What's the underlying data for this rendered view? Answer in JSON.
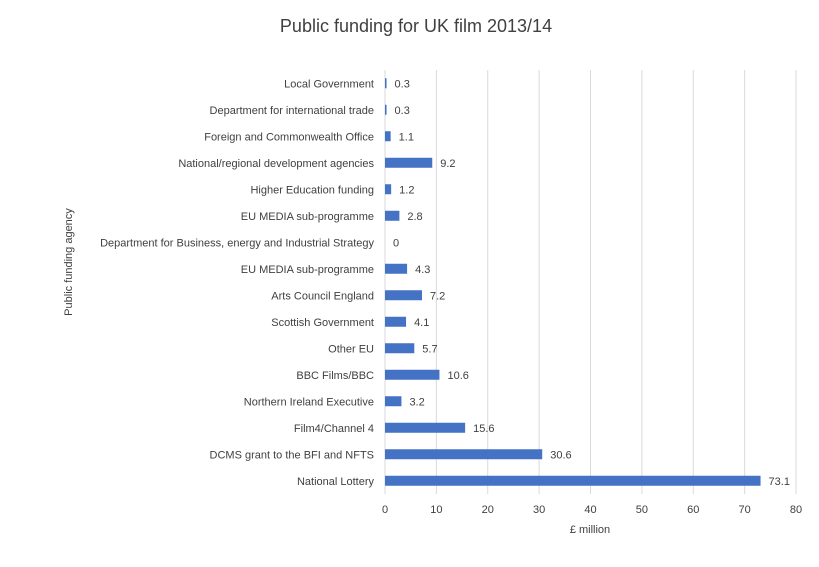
{
  "chart_data": {
    "type": "bar",
    "orientation": "horizontal",
    "title": "Public funding for UK film 2013/14",
    "xlabel": "£ million",
    "ylabel": "Public funding agency",
    "xlim": [
      0,
      80
    ],
    "xticks": [
      0,
      10,
      20,
      30,
      40,
      50,
      60,
      70,
      80
    ],
    "grid": true,
    "legend": "none",
    "bar_color": "#4472c4",
    "categories": [
      "Local Government",
      "Department for international trade",
      "Foreign and Commonwealth Office",
      "National/regional development agencies",
      "Higher Education funding",
      "EU MEDIA sub-programme",
      "Department for Business, energy and Industrial Strategy",
      "EU MEDIA sub-programme",
      "Arts Council England",
      "Scottish Government",
      "Other EU",
      "BBC Films/BBC",
      "Northern Ireland Executive",
      "Film4/Channel 4",
      "DCMS grant to the BFI and NFTS",
      "National Lottery"
    ],
    "values": [
      0.3,
      0.3,
      1.1,
      9.2,
      1.2,
      2.8,
      0,
      4.3,
      7.2,
      4.1,
      5.7,
      10.6,
      3.2,
      15.6,
      30.6,
      73.1
    ],
    "data_labels": [
      "0.3",
      "0.3",
      "1.1",
      "9.2",
      "1.2",
      "2.8",
      "0",
      "4.3",
      "7.2",
      "4.1",
      "5.7",
      "10.6",
      "3.2",
      "15.6",
      "30.6",
      "73.1"
    ]
  }
}
